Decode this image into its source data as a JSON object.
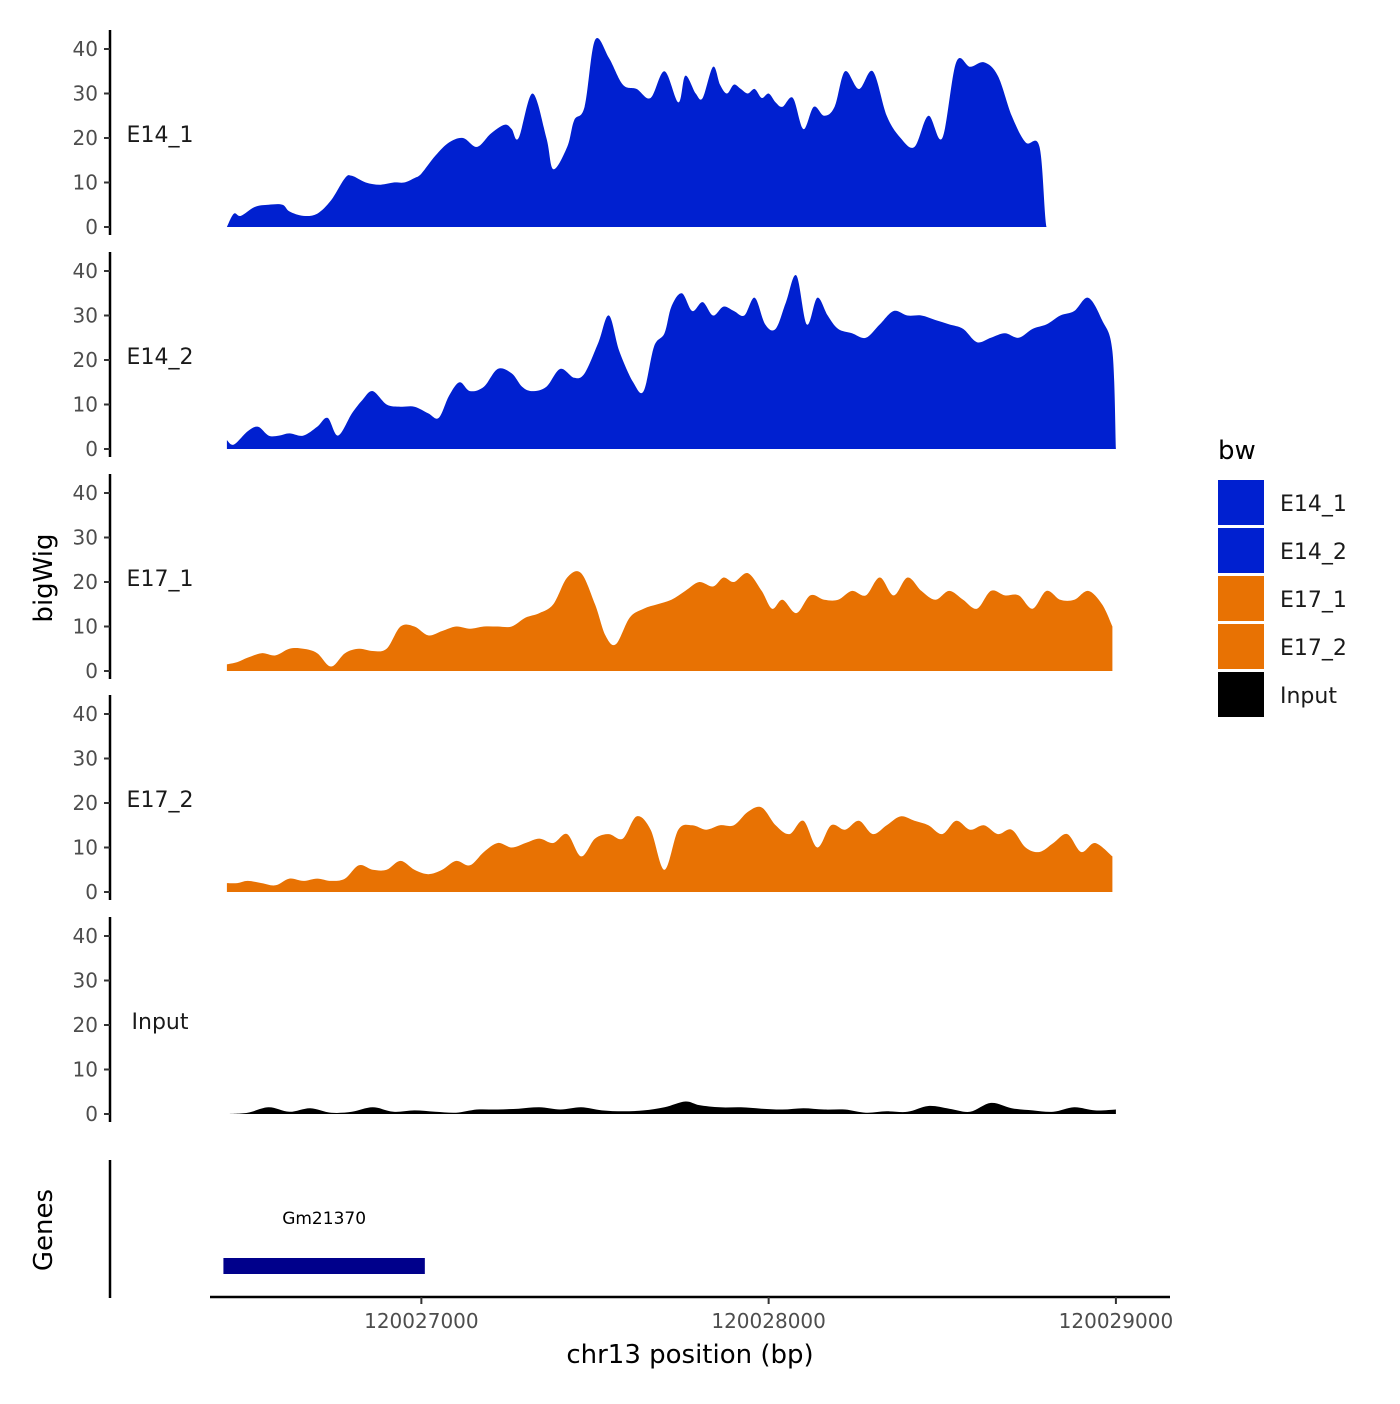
{
  "chart_data": {
    "type": "area",
    "title": "",
    "xlabel": "chr13 position (bp)",
    "ylabel": "bigWig",
    "genes_label": "Genes",
    "xlim": [
      120026400,
      120029150
    ],
    "ylim": [
      0,
      44
    ],
    "y_ticks": [
      0,
      10,
      20,
      30,
      40
    ],
    "x_ticks": [
      120027000,
      120028000,
      120029000
    ],
    "x_tick_labels": [
      "120027000",
      "120028000",
      "120029000"
    ],
    "legend": {
      "title": "bw",
      "position": "right",
      "entries": [
        {
          "label": "E14_1",
          "color": "#0020d0"
        },
        {
          "label": "E14_2",
          "color": "#0020d0"
        },
        {
          "label": "E17_1",
          "color": "#e87203"
        },
        {
          "label": "E17_2",
          "color": "#e87203"
        },
        {
          "label": "Input",
          "color": "#000000"
        }
      ]
    },
    "series": [
      {
        "name": "E14_1",
        "color": "#0020d0",
        "x": [
          120026440,
          120026460,
          120026480,
          120026520,
          120026560,
          120026600,
          120026620,
          120026660,
          120026700,
          120026740,
          120026780,
          120026800,
          120026840,
          120026880,
          120026920,
          120026950,
          120026980,
          120027000,
          120027040,
          120027080,
          120027120,
          120027160,
          120027200,
          120027240,
          120027260,
          120027280,
          120027320,
          120027360,
          120027380,
          120027420,
          120027440,
          120027470,
          120027500,
          120027540,
          120027580,
          120027620,
          120027660,
          120027700,
          120027740,
          120027760,
          120027790,
          120027810,
          120027840,
          120027860,
          120027880,
          120027900,
          120027920,
          120027940,
          120027960,
          120027980,
          120028000,
          120028020,
          120028040,
          120028070,
          120028100,
          120028130,
          120028160,
          120028190,
          120028220,
          120028260,
          120028300,
          120028340,
          120028380,
          120028420,
          120028460,
          120028500,
          120028540,
          120028580,
          120028620,
          120028660,
          120028700,
          120028740,
          120028780,
          120028800,
          120028820,
          120028840,
          120028860,
          120028880,
          120028900,
          120028920,
          120028940,
          120028960,
          120028980,
          120028990
        ],
        "values": [
          0,
          3,
          2.5,
          4.5,
          5,
          5,
          3.5,
          2.5,
          3,
          6,
          11,
          11.5,
          10,
          9.5,
          10,
          10,
          11,
          12,
          16,
          19,
          20,
          18,
          21,
          23,
          22,
          20,
          30,
          20,
          13,
          18,
          24,
          27,
          42,
          38,
          32,
          31,
          29,
          35,
          28,
          34,
          30,
          29,
          36,
          32,
          30,
          32,
          31,
          30,
          31,
          29,
          30,
          28,
          27,
          29,
          22,
          27,
          25,
          27,
          35,
          31,
          35,
          25,
          20,
          18,
          25,
          20,
          37,
          36,
          37,
          34,
          25,
          19,
          18,
          0,
          0,
          0,
          0,
          0,
          0,
          0,
          0,
          0,
          0,
          0
        ],
        "x_end": 120028990
      },
      {
        "name": "E14_2",
        "color": "#0020d0",
        "x": [
          120026440,
          120026460,
          120026500,
          120026530,
          120026560,
          120026590,
          120026620,
          120026660,
          120026700,
          120026730,
          120026760,
          120026800,
          120026830,
          120026860,
          120026900,
          120026940,
          120026980,
          120027020,
          120027050,
          120027080,
          120027110,
          120027140,
          120027180,
          120027220,
          120027260,
          120027290,
          120027320,
          120027360,
          120027400,
          120027440,
          120027470,
          120027510,
          120027540,
          120027570,
          120027610,
          120027640,
          120027670,
          120027700,
          120027720,
          120027750,
          120027780,
          120027810,
          120027840,
          120027870,
          120027900,
          120027930,
          120027960,
          120027990,
          120028020,
          120028050,
          120028080,
          120028110,
          120028140,
          120028170,
          120028200,
          120028240,
          120028280,
          120028320,
          120028360,
          120028400,
          120028440,
          120028480,
          120028520,
          120028560,
          120028600,
          120028640,
          120028680,
          120028720,
          120028760,
          120028800,
          120028840,
          120028880,
          120028920,
          120028960,
          120028990,
          120029000
        ],
        "values": [
          2,
          1,
          4,
          5,
          3,
          3,
          3.5,
          3,
          5,
          7,
          3,
          8,
          11,
          13,
          10,
          9.5,
          9.5,
          8,
          7,
          12,
          15,
          13,
          14,
          18,
          17,
          14,
          13,
          14,
          18,
          16,
          17,
          24,
          30,
          22,
          15,
          13,
          23,
          26,
          32,
          35,
          31,
          33,
          30,
          32,
          31,
          30,
          34,
          28,
          27,
          33,
          39,
          28,
          34,
          30,
          27,
          26,
          25,
          28,
          31,
          30,
          30,
          29,
          28,
          27,
          24,
          25,
          26,
          25,
          27,
          28,
          30,
          31,
          34,
          29,
          22,
          0
        ],
        "x_end": 120029010
      },
      {
        "name": "E17_1",
        "color": "#e87203",
        "x": [
          120026440,
          120026470,
          120026500,
          120026540,
          120026580,
          120026620,
          120026660,
          120026700,
          120026740,
          120026780,
          120026820,
          120026860,
          120026900,
          120026940,
          120026980,
          120027020,
          120027060,
          120027100,
          120027140,
          120027180,
          120027220,
          120027260,
          120027300,
          120027340,
          120027380,
          120027420,
          120027460,
          120027500,
          120027530,
          120027560,
          120027600,
          120027640,
          120027680,
          120027720,
          120027760,
          120027800,
          120027840,
          120027870,
          120027900,
          120027940,
          120027980,
          120028010,
          120028040,
          120028080,
          120028120,
          120028160,
          120028200,
          120028240,
          120028280,
          120028320,
          120028360,
          120028400,
          120028440,
          120028480,
          120028520,
          120028560,
          120028600,
          120028640,
          120028680,
          120028720,
          120028760,
          120028800,
          120028840,
          120028880,
          120028920,
          120028960,
          120028990
        ],
        "values": [
          1.5,
          2,
          3,
          4,
          3.5,
          5,
          5,
          4,
          1,
          4,
          5,
          4.5,
          5,
          10,
          10,
          8,
          9,
          10,
          9.5,
          10,
          10,
          10,
          12,
          13,
          15,
          21,
          22,
          15,
          8,
          6,
          12,
          14,
          15,
          16,
          18,
          20,
          19,
          21,
          20,
          22,
          18,
          14,
          16,
          13,
          17,
          16,
          16,
          18,
          17,
          21,
          17,
          21,
          18,
          16,
          18,
          16,
          14,
          18,
          17,
          17,
          14,
          18,
          16,
          16,
          18,
          15,
          10
        ],
        "x_end": 120028990
      },
      {
        "name": "E17_2",
        "color": "#e87203",
        "x": [
          120026440,
          120026470,
          120026500,
          120026540,
          120026580,
          120026620,
          120026660,
          120026700,
          120026740,
          120026780,
          120026820,
          120026860,
          120026900,
          120026940,
          120026980,
          120027020,
          120027060,
          120027100,
          120027140,
          120027180,
          120027220,
          120027260,
          120027300,
          120027340,
          120027380,
          120027420,
          120027460,
          120027500,
          120027540,
          120027580,
          120027620,
          120027660,
          120027700,
          120027740,
          120027780,
          120027820,
          120027860,
          120027900,
          120027940,
          120027980,
          120028020,
          120028060,
          120028100,
          120028140,
          120028180,
          120028220,
          120028260,
          120028300,
          120028340,
          120028380,
          120028420,
          120028460,
          120028500,
          120028540,
          120028580,
          120028620,
          120028660,
          120028700,
          120028740,
          120028780,
          120028820,
          120028860,
          120028900,
          120028940,
          120028990
        ],
        "values": [
          2,
          2,
          2.5,
          2,
          1.5,
          3,
          2.5,
          3,
          2.5,
          3,
          6,
          5,
          5,
          7,
          5,
          4,
          5,
          7,
          6,
          9,
          11,
          10,
          11,
          12,
          11,
          13,
          8,
          12,
          13,
          12,
          17,
          14,
          5,
          14,
          15,
          14,
          15,
          15,
          18,
          19,
          15,
          13,
          16,
          10,
          15,
          14,
          16,
          13,
          15,
          17,
          16,
          15,
          13,
          16,
          14,
          15,
          13,
          14,
          10,
          9,
          11,
          13,
          9,
          11,
          8
        ],
        "x_end": 120028990
      },
      {
        "name": "Input",
        "color": "#000000",
        "x": [
          120026440,
          120026500,
          120026560,
          120026620,
          120026680,
          120026740,
          120026800,
          120026860,
          120026920,
          120026980,
          120027040,
          120027100,
          120027160,
          120027220,
          120027280,
          120027340,
          120027400,
          120027460,
          120027520,
          120027580,
          120027640,
          120027700,
          120027760,
          120027800,
          120027860,
          120027920,
          120027980,
          120028040,
          120028100,
          120028160,
          120028220,
          120028280,
          120028340,
          120028400,
          120028460,
          120028520,
          120028580,
          120028640,
          120028700,
          120028760,
          120028820,
          120028880,
          120028940,
          120029000
        ],
        "values": [
          0,
          0.3,
          1.5,
          0.5,
          1.3,
          0.3,
          0.5,
          1.5,
          0.5,
          0.8,
          0.5,
          0.3,
          1,
          1,
          1.2,
          1.5,
          1,
          1.5,
          0.8,
          0.6,
          0.8,
          1.5,
          2.8,
          2,
          1.5,
          1.5,
          1.2,
          1,
          1.3,
          1,
          1,
          0.3,
          0.6,
          0.5,
          1.8,
          1.2,
          0.5,
          2.5,
          1.3,
          0.8,
          0.5,
          1.5,
          0.8,
          1
        ],
        "x_end": 120029000
      }
    ],
    "genes": [
      {
        "name": "Gm21370",
        "start": 120026430,
        "end": 120027010
      }
    ]
  }
}
